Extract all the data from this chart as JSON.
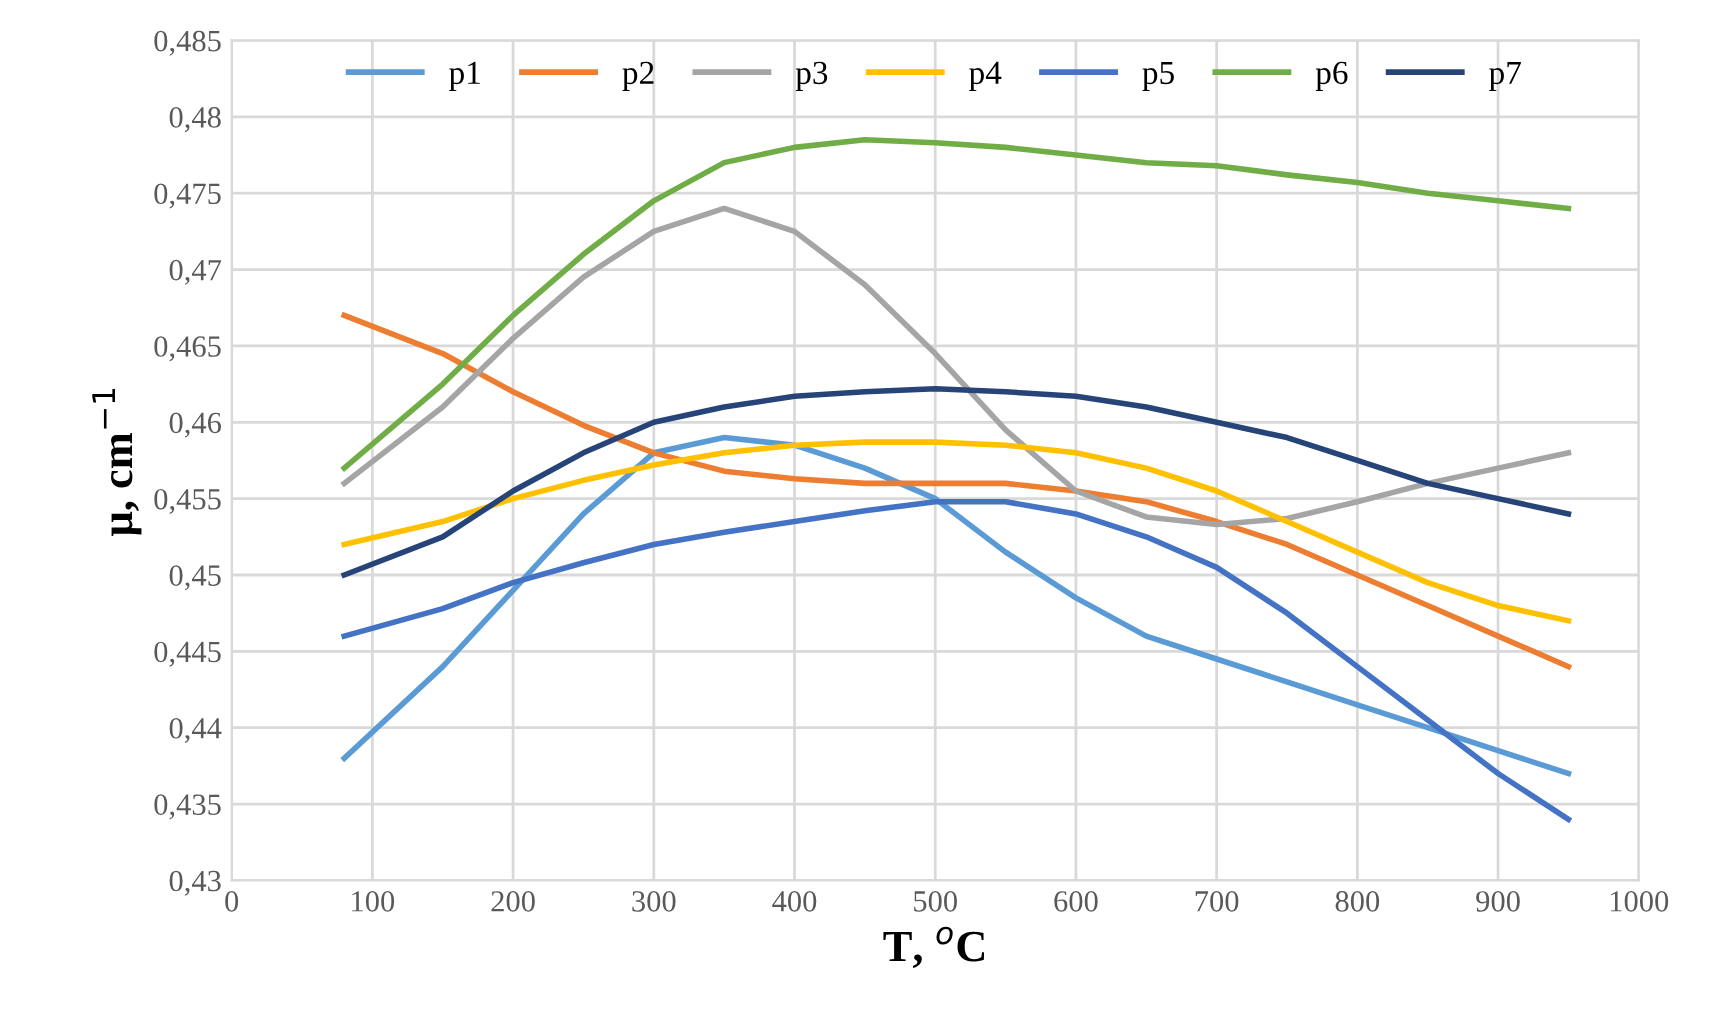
{
  "chart_data": {
    "type": "line",
    "xlabel": "T, $^{o}$C",
    "ylabel": "μ, cm$^{−1}$",
    "x": [
      80,
      150,
      200,
      250,
      300,
      350,
      400,
      450,
      500,
      550,
      600,
      650,
      700,
      750,
      800,
      850,
      900,
      950
    ],
    "series": [
      {
        "name": "p1",
        "color": "#5b9bd5",
        "values": [
          0.438,
          0.444,
          0.449,
          0.454,
          0.458,
          0.459,
          0.4585,
          0.457,
          0.455,
          0.4515,
          0.4485,
          0.446,
          0.4445,
          0.443,
          0.4415,
          0.44,
          0.4385,
          0.437
        ]
      },
      {
        "name": "p2",
        "color": "#ed7d31",
        "values": [
          0.467,
          0.4645,
          0.462,
          0.4598,
          0.458,
          0.4568,
          0.4563,
          0.456,
          0.456,
          0.456,
          0.4555,
          0.4548,
          0.4535,
          0.452,
          0.45,
          0.448,
          0.446,
          0.444
        ]
      },
      {
        "name": "p3",
        "color": "#a5a5a5",
        "values": [
          0.456,
          0.461,
          0.4655,
          0.4695,
          0.4725,
          0.474,
          0.4725,
          0.469,
          0.4645,
          0.4595,
          0.4555,
          0.4538,
          0.4533,
          0.4537,
          0.4548,
          0.456,
          0.457,
          0.458
        ]
      },
      {
        "name": "p4",
        "color": "#ffc000",
        "values": [
          0.452,
          0.4535,
          0.455,
          0.4562,
          0.4572,
          0.458,
          0.4585,
          0.4587,
          0.4587,
          0.4585,
          0.458,
          0.457,
          0.4555,
          0.4535,
          0.4515,
          0.4495,
          0.448,
          0.447
        ]
      },
      {
        "name": "p5",
        "color": "#4472c4",
        "values": [
          0.446,
          0.4478,
          0.4495,
          0.4508,
          0.452,
          0.4528,
          0.4535,
          0.4542,
          0.4548,
          0.4548,
          0.454,
          0.4525,
          0.4505,
          0.4475,
          0.444,
          0.4405,
          0.437,
          0.434
        ]
      },
      {
        "name": "p6",
        "color": "#70ad47",
        "values": [
          0.457,
          0.4625,
          0.467,
          0.471,
          0.4745,
          0.477,
          0.478,
          0.4785,
          0.4783,
          0.478,
          0.4775,
          0.477,
          0.4768,
          0.4762,
          0.4757,
          0.475,
          0.4745,
          0.474
        ]
      },
      {
        "name": "p7",
        "color": "#264478",
        "values": [
          0.45,
          0.4525,
          0.4555,
          0.458,
          0.46,
          0.461,
          0.4617,
          0.462,
          0.4622,
          0.462,
          0.4617,
          0.461,
          0.46,
          0.459,
          0.4575,
          0.456,
          0.455,
          0.454
        ]
      }
    ],
    "xlim": [
      0,
      1000
    ],
    "xticks": [
      0,
      100,
      200,
      300,
      400,
      500,
      600,
      700,
      800,
      900,
      1000
    ],
    "ylim": [
      0.43,
      0.485
    ],
    "yticks": [
      {
        "value": 0.43,
        "label": "0,43"
      },
      {
        "value": 0.435,
        "label": "0,435"
      },
      {
        "value": 0.44,
        "label": "0,44"
      },
      {
        "value": 0.445,
        "label": "0,445"
      },
      {
        "value": 0.45,
        "label": "0,45"
      },
      {
        "value": 0.455,
        "label": "0,455"
      },
      {
        "value": 0.46,
        "label": "0,46"
      },
      {
        "value": 0.465,
        "label": "0,465"
      },
      {
        "value": 0.47,
        "label": "0,47"
      },
      {
        "value": 0.475,
        "label": "0,475"
      },
      {
        "value": 0.48,
        "label": "0,48"
      },
      {
        "value": 0.485,
        "label": "0,485"
      }
    ],
    "grid": true,
    "legend": "top",
    "marker": "none",
    "line_style": "solid"
  }
}
